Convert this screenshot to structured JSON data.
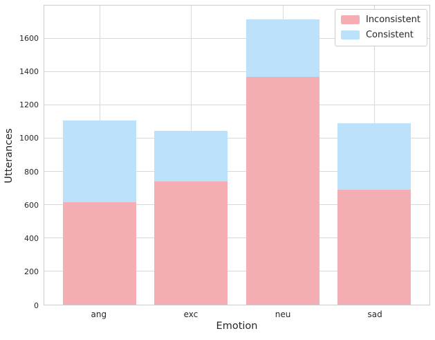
{
  "chart_data": {
    "type": "bar",
    "stacked": true,
    "title": "",
    "xlabel": "Emotion",
    "ylabel": "Utterances",
    "categories": [
      "ang",
      "exc",
      "neu",
      "sad"
    ],
    "series": [
      {
        "name": "Inconsistent",
        "color": "#f5aeb4",
        "values": [
          615,
          740,
          1365,
          690
        ]
      },
      {
        "name": "Consistent",
        "color": "#bce1fb",
        "values": [
          490,
          300,
          345,
          395
        ]
      }
    ],
    "stack_totals": [
      1105,
      1040,
      1710,
      1085
    ],
    "ylim": [
      0,
      1800
    ],
    "yticks": [
      0,
      200,
      400,
      600,
      800,
      1000,
      1200,
      1400,
      1600
    ],
    "grid": "both",
    "legend_position": "upper right"
  },
  "style": {
    "grid_color": "#d9d9d9",
    "spine_color": "#cccccc",
    "text_color": "#262626",
    "background": "#ffffff"
  }
}
